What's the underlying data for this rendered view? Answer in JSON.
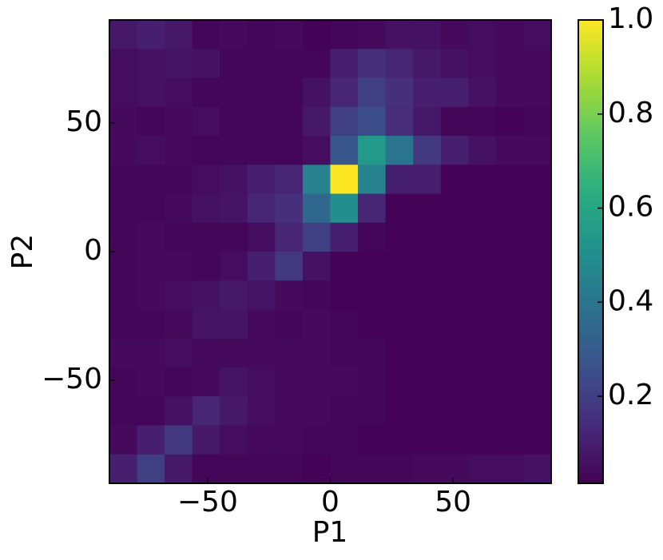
{
  "chart_data": {
    "type": "heatmap",
    "x_label": "P1",
    "y_label": "P2",
    "xlim": [
      -90,
      90
    ],
    "ylim": [
      -90,
      90
    ],
    "xticks": [
      {
        "value": -50,
        "label": "−50"
      },
      0,
      50
    ],
    "yticks": [
      {
        "value": -50,
        "label": "−50"
      },
      0,
      50
    ],
    "colormap": "viridis",
    "zlim": [
      0.015,
      1
    ],
    "zticks": [
      0.2,
      0.4,
      0.6,
      0.8,
      {
        "value": 1,
        "label": "1.0"
      }
    ],
    "z": [
      [
        0.08,
        0.1,
        0.08,
        0.03,
        0.04,
        0.03,
        0.04,
        0.02,
        0.03,
        0.04,
        0.06,
        0.06,
        0.04,
        0.05,
        0.04,
        0.05
      ],
      [
        0.05,
        0.06,
        0.07,
        0.06,
        0.03,
        0.03,
        0.03,
        0.03,
        0.1,
        0.15,
        0.12,
        0.08,
        0.06,
        0.05,
        0.04,
        0.04
      ],
      [
        0.05,
        0.06,
        0.05,
        0.03,
        0.03,
        0.03,
        0.03,
        0.06,
        0.12,
        0.2,
        0.15,
        0.1,
        0.1,
        0.06,
        0.04,
        0.04
      ],
      [
        0.04,
        0.03,
        0.04,
        0.05,
        0.03,
        0.03,
        0.03,
        0.08,
        0.2,
        0.25,
        0.14,
        0.08,
        0.03,
        0.03,
        0.02,
        0.03
      ],
      [
        0.04,
        0.05,
        0.04,
        0.03,
        0.03,
        0.03,
        0.03,
        0.05,
        0.28,
        0.55,
        0.4,
        0.18,
        0.1,
        0.06,
        0.04,
        0.04
      ],
      [
        0.03,
        0.03,
        0.03,
        0.05,
        0.06,
        0.1,
        0.12,
        0.45,
        1.0,
        0.45,
        0.1,
        0.1,
        0.02,
        0.02,
        0.02,
        0.02
      ],
      [
        0.03,
        0.03,
        0.04,
        0.06,
        0.07,
        0.12,
        0.15,
        0.35,
        0.5,
        0.12,
        0.02,
        0.02,
        0.02,
        0.02,
        0.02,
        0.02
      ],
      [
        0.03,
        0.04,
        0.03,
        0.03,
        0.03,
        0.05,
        0.12,
        0.2,
        0.1,
        0.03,
        0.02,
        0.02,
        0.02,
        0.02,
        0.02,
        0.02
      ],
      [
        0.03,
        0.04,
        0.04,
        0.03,
        0.05,
        0.1,
        0.18,
        0.06,
        0.02,
        0.02,
        0.02,
        0.02,
        0.02,
        0.02,
        0.02,
        0.02
      ],
      [
        0.03,
        0.04,
        0.05,
        0.06,
        0.08,
        0.07,
        0.04,
        0.03,
        0.02,
        0.02,
        0.02,
        0.02,
        0.02,
        0.02,
        0.02,
        0.02
      ],
      [
        0.03,
        0.03,
        0.04,
        0.07,
        0.07,
        0.04,
        0.03,
        0.04,
        0.03,
        0.02,
        0.02,
        0.02,
        0.02,
        0.02,
        0.02,
        0.02
      ],
      [
        0.04,
        0.04,
        0.05,
        0.04,
        0.04,
        0.04,
        0.04,
        0.04,
        0.03,
        0.03,
        0.02,
        0.02,
        0.02,
        0.02,
        0.02,
        0.02
      ],
      [
        0.03,
        0.04,
        0.03,
        0.04,
        0.07,
        0.05,
        0.04,
        0.04,
        0.04,
        0.03,
        0.02,
        0.02,
        0.02,
        0.02,
        0.02,
        0.02
      ],
      [
        0.03,
        0.03,
        0.06,
        0.12,
        0.08,
        0.05,
        0.04,
        0.04,
        0.03,
        0.03,
        0.02,
        0.02,
        0.02,
        0.02,
        0.02,
        0.02
      ],
      [
        0.04,
        0.1,
        0.18,
        0.08,
        0.05,
        0.04,
        0.04,
        0.03,
        0.03,
        0.02,
        0.02,
        0.02,
        0.02,
        0.02,
        0.02,
        0.02
      ],
      [
        0.1,
        0.2,
        0.08,
        0.03,
        0.03,
        0.03,
        0.03,
        0.02,
        0.03,
        0.03,
        0.03,
        0.04,
        0.04,
        0.05,
        0.05,
        0.06
      ]
    ]
  }
}
